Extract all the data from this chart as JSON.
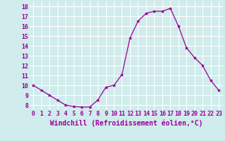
{
  "x": [
    0,
    1,
    2,
    3,
    4,
    5,
    6,
    7,
    8,
    9,
    10,
    11,
    12,
    13,
    14,
    15,
    16,
    17,
    18,
    19,
    20,
    21,
    22,
    23
  ],
  "y": [
    10.0,
    9.5,
    9.0,
    8.5,
    8.0,
    7.85,
    7.8,
    7.8,
    8.5,
    9.8,
    10.0,
    11.1,
    14.8,
    16.5,
    17.3,
    17.5,
    17.5,
    17.8,
    16.0,
    13.8,
    12.8,
    12.0,
    10.5,
    9.5
  ],
  "line_color": "#990099",
  "marker": "*",
  "marker_size": 3,
  "bg_color": "#d0ecec",
  "grid_color": "#ffffff",
  "xlabel": "Windchill (Refroidissement éolien,°C)",
  "xlabel_color": "#990099",
  "xlabel_fontsize": 7,
  "tick_color": "#990099",
  "tick_fontsize": 6,
  "ylim": [
    7.5,
    18.5
  ],
  "xlim": [
    -0.5,
    23.5
  ],
  "yticks": [
    8,
    9,
    10,
    11,
    12,
    13,
    14,
    15,
    16,
    17,
    18
  ],
  "xticks": [
    0,
    1,
    2,
    3,
    4,
    5,
    6,
    7,
    8,
    9,
    10,
    11,
    12,
    13,
    14,
    15,
    16,
    17,
    18,
    19,
    20,
    21,
    22,
    23
  ]
}
